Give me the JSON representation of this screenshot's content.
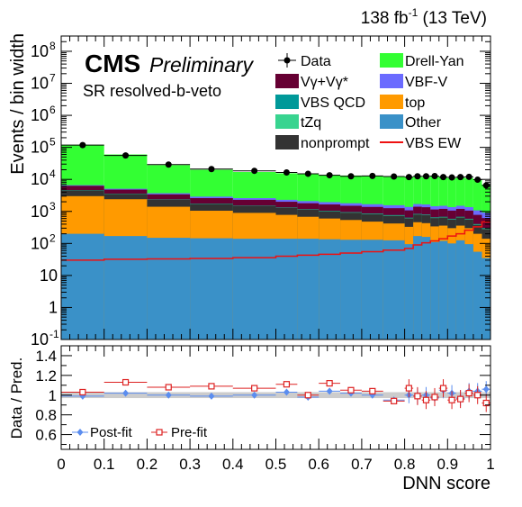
{
  "header": {
    "lumi": "138 fb",
    "lumi_sup": "-1",
    "energy": " (13 TeV)"
  },
  "labels": {
    "cms": "CMS",
    "preliminary": "Preliminary",
    "region": "SR resolved-b-veto"
  },
  "chart_data": [
    {
      "type": "bar",
      "subtype": "stacked-histogram",
      "ylabel": "Events / bin width",
      "yscale": "log",
      "ylim": [
        0.1,
        300000000
      ],
      "xlim": [
        0,
        1
      ],
      "yticks": [
        {
          "v": 0.1,
          "base": "10",
          "exp": "-1"
        },
        {
          "v": 1,
          "base": "1",
          "exp": ""
        },
        {
          "v": 10,
          "base": "10",
          "exp": ""
        },
        {
          "v": 100,
          "base": "10",
          "exp": "2"
        },
        {
          "v": 1000,
          "base": "10",
          "exp": "3"
        },
        {
          "v": 10000,
          "base": "10",
          "exp": "4"
        },
        {
          "v": 100000,
          "base": "10",
          "exp": "5"
        },
        {
          "v": 1000000,
          "base": "10",
          "exp": "6"
        },
        {
          "v": 10000000,
          "base": "10",
          "exp": "7"
        },
        {
          "v": 100000000,
          "base": "10",
          "exp": "8"
        }
      ],
      "bin_edges": [
        0,
        0.1,
        0.2,
        0.3,
        0.4,
        0.5,
        0.55,
        0.6,
        0.65,
        0.7,
        0.75,
        0.8,
        0.82,
        0.84,
        0.86,
        0.88,
        0.9,
        0.92,
        0.94,
        0.96,
        0.98,
        1.0
      ],
      "series": [
        {
          "name": "Other",
          "color": "#3a91c8",
          "values": [
            200,
            170,
            150,
            145,
            140,
            140,
            140,
            135,
            130,
            130,
            125,
            95,
            170,
            160,
            110,
            120,
            100,
            125,
            95,
            55,
            35
          ]
        },
        {
          "name": "top",
          "color": "#ff9a00",
          "values": [
            3000,
            2400,
            1400,
            1050,
            900,
            780,
            680,
            600,
            540,
            480,
            420,
            330,
            460,
            430,
            340,
            360,
            300,
            360,
            300,
            200,
            140
          ]
        },
        {
          "name": "nonprompt",
          "color": "#333333",
          "values": [
            4500,
            3500,
            2300,
            1700,
            1480,
            1280,
            1130,
            1010,
            910,
            820,
            730,
            610,
            800,
            760,
            620,
            650,
            560,
            650,
            560,
            380,
            280
          ]
        },
        {
          "name": "tZq",
          "color": "#38d490",
          "values": [
            4550,
            3540,
            2330,
            1725,
            1500,
            1300,
            1150,
            1030,
            930,
            840,
            750,
            625,
            818,
            778,
            636,
            666,
            575,
            666,
            575,
            392,
            291
          ]
        },
        {
          "name": "VBS QCD",
          "color": "#009999",
          "values": [
            4600,
            3580,
            2360,
            1750,
            1520,
            1320,
            1170,
            1050,
            950,
            860,
            770,
            640,
            836,
            796,
            652,
            682,
            590,
            682,
            590,
            404,
            302
          ]
        },
        {
          "name": "Vγ+Vγ*",
          "color": "#660033",
          "values": [
            6300,
            4800,
            3400,
            2600,
            2300,
            2000,
            1800,
            1650,
            1500,
            1380,
            1260,
            1080,
            1400,
            1350,
            1150,
            1200,
            1060,
            1200,
            1060,
            780,
            620
          ]
        },
        {
          "name": "VBF-V",
          "color": "#6b6bff",
          "values": [
            6600,
            5100,
            3700,
            2900,
            2600,
            2300,
            2100,
            1950,
            1800,
            1680,
            1560,
            1380,
            1700,
            1650,
            1450,
            1500,
            1360,
            1500,
            1360,
            1080,
            920
          ]
        },
        {
          "name": "Drell-Yan",
          "color": "#33ff33",
          "values": [
            120000,
            60000,
            28000,
            20000,
            17000,
            15500,
            14500,
            13800,
            13200,
            12700,
            12300,
            11900,
            12200,
            11800,
            12600,
            12000,
            10800,
            11600,
            11000,
            9500,
            6900
          ]
        }
      ],
      "signal": {
        "name": "VBS EW",
        "color": "#ee1111",
        "values": [
          30,
          32,
          33,
          34,
          36,
          40,
          43,
          46,
          50,
          55,
          62,
          70,
          90,
          105,
          120,
          140,
          170,
          200,
          260,
          330,
          470
        ]
      },
      "data": {
        "name": "Data",
        "x": [
          0.05,
          0.15,
          0.25,
          0.35,
          0.45,
          0.525,
          0.575,
          0.625,
          0.675,
          0.725,
          0.775,
          0.81,
          0.83,
          0.85,
          0.87,
          0.89,
          0.91,
          0.93,
          0.95,
          0.97,
          0.99
        ],
        "y": [
          118000,
          56000,
          29000,
          21000,
          18500,
          16500,
          15000,
          13500,
          12500,
          12800,
          12300,
          11800,
          12500,
          12500,
          12700,
          11800,
          11500,
          11800,
          12000,
          9800,
          6500
        ]
      },
      "legend_position": "top-right"
    },
    {
      "type": "scatter",
      "xlabel": "DNN score",
      "ylabel": "Data / Pred.",
      "ylim": [
        0.45,
        1.5
      ],
      "yticks": [
        0.6,
        0.8,
        1,
        1.2,
        1.4
      ],
      "yticklabels": [
        "0.6",
        "0.8",
        "1",
        "1.2",
        "1.4"
      ],
      "xticks": [
        0,
        0.1,
        0.2,
        0.3,
        0.4,
        0.5,
        0.6,
        0.7,
        0.8,
        0.9,
        1
      ],
      "xticklabels": [
        "0",
        "0.1",
        "0.2",
        "0.3",
        "0.4",
        "0.5",
        "0.6",
        "0.7",
        "0.8",
        "0.9",
        "1"
      ],
      "series": [
        {
          "name": "Post-fit",
          "color": "#5b8def",
          "marker": "filled-diamond",
          "x": [
            0.05,
            0.15,
            0.25,
            0.35,
            0.45,
            0.525,
            0.575,
            0.625,
            0.675,
            0.725,
            0.775,
            0.81,
            0.83,
            0.85,
            0.87,
            0.89,
            0.91,
            0.93,
            0.95,
            0.97,
            0.99
          ],
          "y": [
            0.99,
            1.02,
            1.0,
            0.99,
            1.0,
            1.03,
            0.98,
            1.04,
            1.02,
            1.0,
            0.95,
            1.0,
            0.99,
            1.0,
            0.97,
            1.05,
            1.02,
            0.97,
            1.04,
            1.04,
            1.06
          ]
        },
        {
          "name": "Pre-fit",
          "color": "#dd2222",
          "marker": "open-square",
          "x": [
            0.05,
            0.15,
            0.25,
            0.35,
            0.45,
            0.525,
            0.575,
            0.625,
            0.675,
            0.725,
            0.775,
            0.81,
            0.83,
            0.85,
            0.87,
            0.89,
            0.91,
            0.93,
            0.95,
            0.97,
            0.99
          ],
          "y": [
            1.03,
            1.13,
            1.08,
            1.09,
            1.07,
            1.11,
            1.0,
            1.12,
            1.05,
            1.04,
            0.94,
            1.07,
            0.99,
            0.95,
            0.98,
            1.07,
            0.95,
            0.96,
            1.02,
            1.0,
            0.92
          ]
        }
      ],
      "legend_position": "bottom-left"
    }
  ]
}
